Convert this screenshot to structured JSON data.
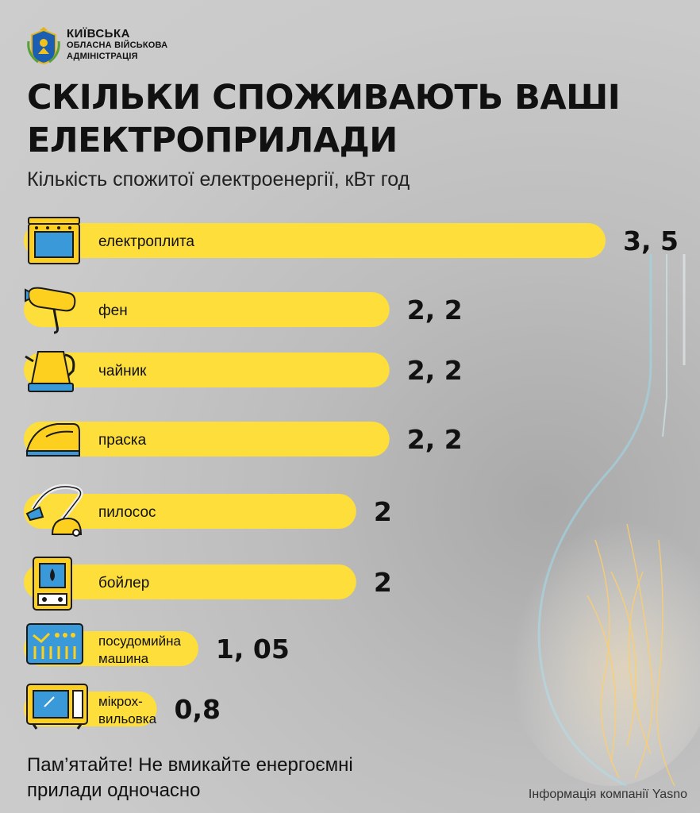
{
  "header": {
    "org_name": "КИЇВСЬКА",
    "org_sub_1": "ОБЛАСНА ВІЙСЬКОВА",
    "org_sub_2": "АДМІНІСТРАЦІЯ"
  },
  "footer": {
    "note_line_1": "Пам’ятайте! Не вмикайте енергоємні",
    "note_line_2": "прилади одночасно",
    "source": "Інформація компанії Yasno"
  },
  "colors": {
    "bar": "#fdde3a",
    "icon_fill": "#fdd020",
    "icon_screen": "#3a9ad9",
    "icon_stroke": "#1a1a1a"
  },
  "chart_data": {
    "type": "bar",
    "orientation": "horizontal",
    "title_line_1": "СКІЛЬКИ СПОЖИВАЮТЬ ВАШІ",
    "title_line_2": "ЕЛЕКТРОПРИЛАДИ",
    "subtitle": "Кількість спожитої електроенергії, кВт год",
    "categories": [
      {
        "label": [
          "електроплита"
        ],
        "value": 3.5,
        "value_label": "3, 5",
        "icon": "stove-icon"
      },
      {
        "label": [
          "фен"
        ],
        "value": 2.2,
        "value_label": "2, 2",
        "icon": "hair-dryer-icon"
      },
      {
        "label": [
          "чайник"
        ],
        "value": 2.2,
        "value_label": "2, 2",
        "icon": "kettle-icon"
      },
      {
        "label": [
          "праска"
        ],
        "value": 2.2,
        "value_label": "2, 2",
        "icon": "iron-icon"
      },
      {
        "label": [
          "пилосос"
        ],
        "value": 2,
        "value_label": "2",
        "icon": "vacuum-icon"
      },
      {
        "label": [
          "бойлер"
        ],
        "value": 2,
        "value_label": "2",
        "icon": "boiler-icon"
      },
      {
        "label": [
          "посудомийна",
          "машина"
        ],
        "value": 1.05,
        "value_label": "1, 05",
        "icon": "dishwasher-icon"
      },
      {
        "label": [
          "мікрох-",
          "вильовка"
        ],
        "value": 0.8,
        "value_label": "0,8",
        "icon": "microwave-icon"
      }
    ],
    "grid": false,
    "legend": "none"
  }
}
